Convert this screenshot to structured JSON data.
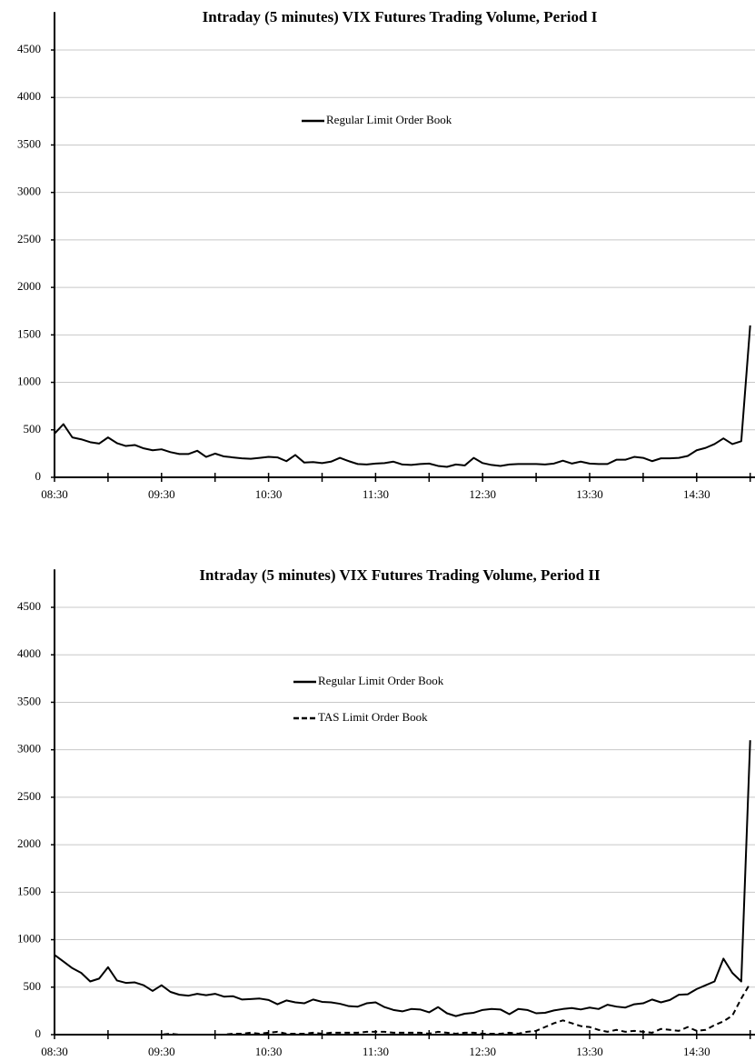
{
  "chart_data": [
    {
      "type": "line",
      "title": "Intraday (5 minutes) VIX Futures Trading Volume, Period I",
      "categories": [
        "08:30",
        null,
        null,
        null,
        null,
        null,
        null,
        null,
        null,
        null,
        null,
        null,
        "09:30",
        null,
        null,
        null,
        null,
        null,
        null,
        null,
        null,
        null,
        null,
        null,
        "10:30",
        null,
        null,
        null,
        null,
        null,
        null,
        null,
        null,
        null,
        null,
        null,
        "11:30",
        null,
        null,
        null,
        null,
        null,
        null,
        null,
        null,
        null,
        null,
        null,
        "12:30",
        null,
        null,
        null,
        null,
        null,
        null,
        null,
        null,
        null,
        null,
        null,
        "13:30",
        null,
        null,
        null,
        null,
        null,
        null,
        null,
        null,
        null,
        null,
        null,
        "14:30",
        null,
        null,
        null,
        null,
        null,
        null
      ],
      "series": [
        {
          "name": "Regular Limit Order Book",
          "color": "#000000",
          "dashed": false,
          "values": [
            460,
            560,
            420,
            400,
            370,
            355,
            420,
            360,
            330,
            340,
            305,
            285,
            295,
            265,
            245,
            245,
            280,
            215,
            250,
            220,
            210,
            200,
            195,
            205,
            215,
            210,
            170,
            235,
            155,
            160,
            150,
            165,
            205,
            170,
            140,
            135,
            145,
            150,
            165,
            135,
            130,
            140,
            145,
            120,
            110,
            135,
            125,
            205,
            150,
            130,
            120,
            135,
            140,
            140,
            140,
            135,
            145,
            175,
            145,
            165,
            145,
            140,
            140,
            185,
            185,
            215,
            205,
            170,
            200,
            200,
            205,
            225,
            285,
            310,
            350,
            410,
            350,
            380,
            1600
          ]
        }
      ],
      "ylim": [
        0,
        4900
      ],
      "yticks": [
        0,
        500,
        1000,
        1500,
        2000,
        2500,
        3000,
        3500,
        4000,
        4500
      ],
      "grid": true
    },
    {
      "type": "line",
      "title": "Intraday (5 minutes) VIX Futures Trading Volume, Period II",
      "categories": [
        "08:30",
        null,
        null,
        null,
        null,
        null,
        null,
        null,
        null,
        null,
        null,
        null,
        "09:30",
        null,
        null,
        null,
        null,
        null,
        null,
        null,
        null,
        null,
        null,
        null,
        "10:30",
        null,
        null,
        null,
        null,
        null,
        null,
        null,
        null,
        null,
        null,
        null,
        "11:30",
        null,
        null,
        null,
        null,
        null,
        null,
        null,
        null,
        null,
        null,
        null,
        "12:30",
        null,
        null,
        null,
        null,
        null,
        null,
        null,
        null,
        null,
        null,
        null,
        "13:30",
        null,
        null,
        null,
        null,
        null,
        null,
        null,
        null,
        null,
        null,
        null,
        "14:30",
        null,
        null,
        null,
        null,
        null,
        null
      ],
      "series": [
        {
          "name": "Regular Limit Order Book",
          "color": "#000000",
          "dashed": false,
          "values": [
            840,
            770,
            700,
            650,
            560,
            590,
            710,
            570,
            545,
            550,
            520,
            460,
            520,
            450,
            420,
            410,
            430,
            415,
            430,
            400,
            405,
            370,
            375,
            380,
            365,
            320,
            360,
            340,
            330,
            370,
            345,
            340,
            325,
            300,
            295,
            330,
            340,
            290,
            260,
            245,
            270,
            265,
            235,
            290,
            225,
            195,
            220,
            230,
            260,
            270,
            265,
            215,
            270,
            260,
            225,
            230,
            255,
            270,
            280,
            265,
            285,
            270,
            315,
            295,
            285,
            320,
            330,
            370,
            340,
            365,
            420,
            425,
            480,
            520,
            560,
            800,
            650,
            560,
            3100
          ]
        },
        {
          "name": "TAS Limit Order Book",
          "color": "#000000",
          "dashed": true,
          "values": [
            0,
            0,
            0,
            0,
            0,
            0,
            0,
            0,
            0,
            0,
            0,
            0,
            0,
            10,
            0,
            0,
            0,
            0,
            0,
            0,
            10,
            10,
            20,
            10,
            20,
            30,
            10,
            10,
            10,
            20,
            10,
            20,
            20,
            20,
            20,
            30,
            30,
            30,
            20,
            20,
            20,
            20,
            10,
            30,
            20,
            10,
            20,
            20,
            10,
            10,
            10,
            20,
            10,
            30,
            40,
            80,
            120,
            150,
            120,
            90,
            80,
            50,
            30,
            50,
            30,
            40,
            30,
            20,
            60,
            50,
            40,
            80,
            40,
            50,
            100,
            140,
            200,
            380,
            540
          ]
        }
      ],
      "ylim": [
        0,
        4900
      ],
      "yticks": [
        0,
        500,
        1000,
        1500,
        2000,
        2500,
        3000,
        3500,
        4000,
        4500
      ],
      "grid": true
    }
  ]
}
